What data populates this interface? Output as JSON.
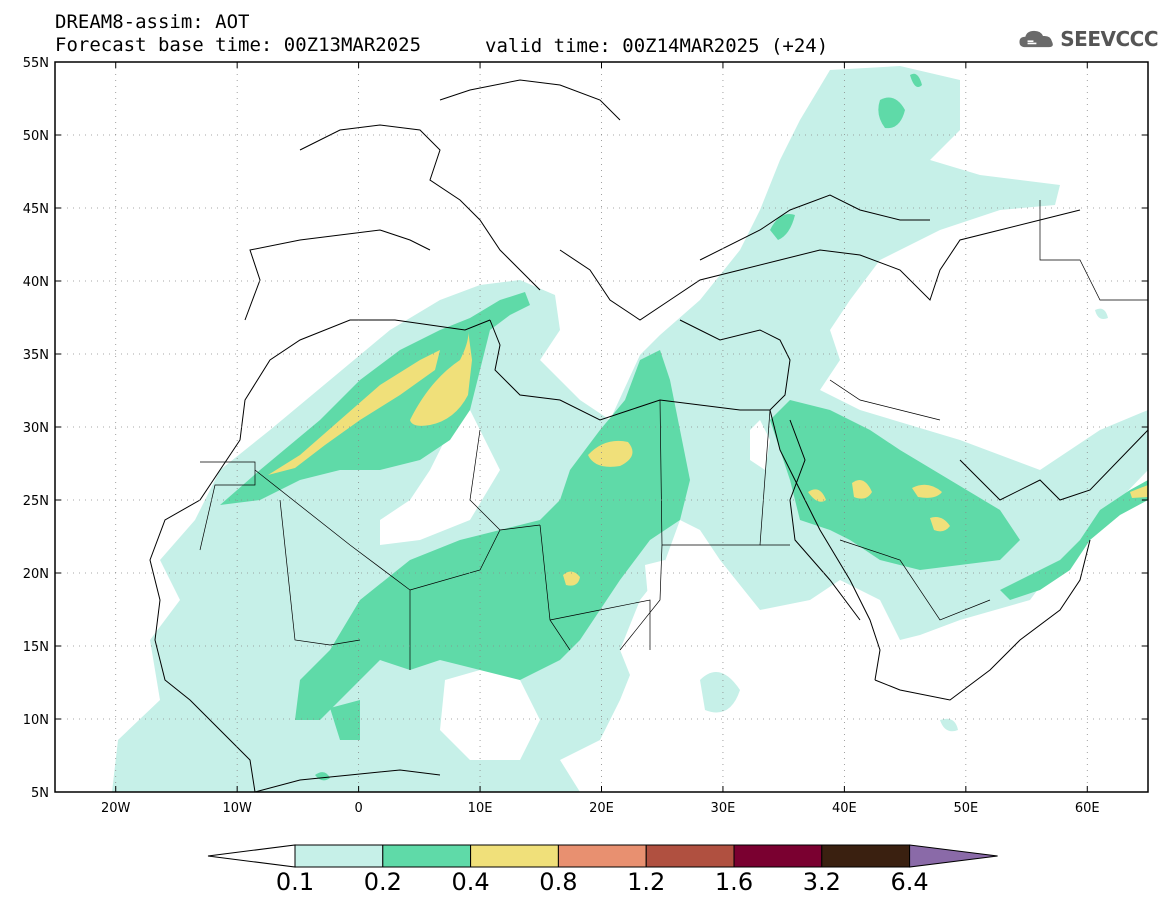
{
  "header": {
    "title_line1": "DREAM8-assim: AOT",
    "title_line2_left": "Forecast base time: 00Z13MAR2025",
    "title_line2_right": "valid time: 00Z14MAR2025 (+24)",
    "logo_text": "SEEVCCC"
  },
  "axes": {
    "lat_labels": [
      "55N",
      "50N",
      "45N",
      "40N",
      "35N",
      "30N",
      "25N",
      "20N",
      "15N",
      "10N",
      "5N"
    ],
    "lat_values": [
      55,
      50,
      45,
      40,
      35,
      30,
      25,
      20,
      15,
      10,
      5
    ],
    "lon_labels": [
      "20W",
      "10W",
      "0",
      "10E",
      "20E",
      "30E",
      "40E",
      "50E",
      "60E"
    ],
    "lon_values": [
      -20,
      -10,
      0,
      10,
      20,
      30,
      40,
      50,
      60
    ],
    "lon_range": [
      -25,
      65
    ],
    "lat_range": [
      5,
      55
    ],
    "grid": "dotted"
  },
  "colorbar": {
    "labels": [
      "0.1",
      "0.2",
      "0.4",
      "0.8",
      "1.2",
      "1.6",
      "3.2",
      "6.4"
    ],
    "colors": [
      "#c6f0e8",
      "#5fdaa8",
      "#f0e07a",
      "#e89070",
      "#b05040",
      "#7a0030",
      "#3a2010",
      "#8a6aa8"
    ],
    "under_color": "#ffffff"
  },
  "colors": {
    "aot_01": "#c6f0e8",
    "aot_02": "#5fdaa8",
    "aot_04": "#f0e07a",
    "border": "#000000",
    "grid": "#888888"
  }
}
